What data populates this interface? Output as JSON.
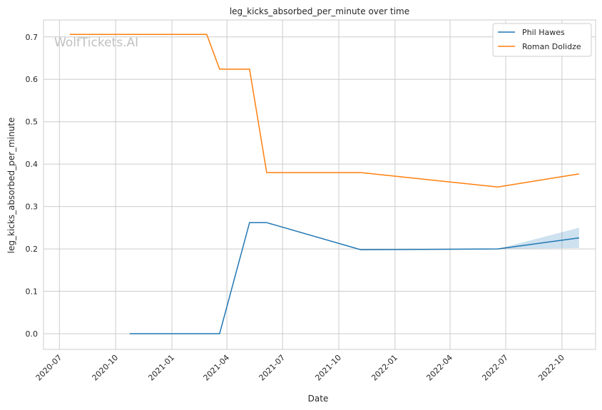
{
  "chart_data": {
    "type": "line",
    "title": "leg_kicks_absorbed_per_minute over time",
    "xlabel": "Date",
    "ylabel": "leg_kicks_absorbed_per_minute",
    "watermark": "WolfTickets.AI",
    "x_ticks": [
      "2020-07",
      "2020-10",
      "2021-01",
      "2021-04",
      "2021-07",
      "2021-10",
      "2022-01",
      "2022-04",
      "2022-07",
      "2022-10"
    ],
    "y_ticks": [
      "0.0",
      "0.1",
      "0.2",
      "0.3",
      "0.4",
      "0.5",
      "0.6",
      "0.7"
    ],
    "xlim": [
      "2020-06-05",
      "2022-11-25"
    ],
    "ylim": [
      -0.037,
      0.74
    ],
    "grid": true,
    "legend_position": "top-right",
    "series": [
      {
        "name": "Phil Hawes",
        "color": "#1f77b4",
        "x": [
          "2020-10-24",
          "2021-03-20",
          "2021-05-08",
          "2021-06-05",
          "2021-11-06",
          "2022-06-18",
          "2022-10-29"
        ],
        "y": [
          0.0,
          0.0,
          0.262,
          0.262,
          0.198,
          0.2,
          0.226
        ],
        "band": {
          "x": [
            "2022-06-18",
            "2022-10-29"
          ],
          "lower": [
            0.2,
            0.202
          ],
          "upper": [
            0.2,
            0.25
          ]
        }
      },
      {
        "name": "Roman Dolidze",
        "color": "#ff7f0e",
        "x": [
          "2020-07-18",
          "2021-02-27",
          "2021-03-20",
          "2021-05-08",
          "2021-06-05",
          "2021-11-06",
          "2022-06-18",
          "2022-10-29"
        ],
        "y": [
          0.706,
          0.706,
          0.624,
          0.624,
          0.38,
          0.38,
          0.346,
          0.377
        ]
      }
    ]
  }
}
